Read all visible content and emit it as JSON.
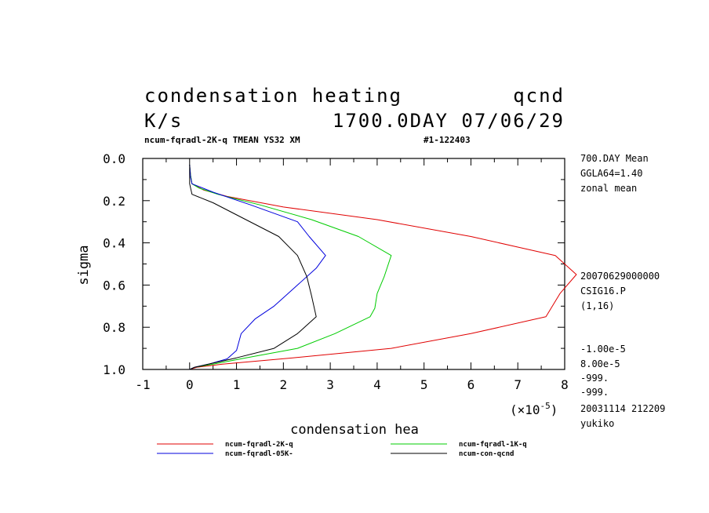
{
  "header": {
    "title": "condensation heating",
    "var_code": "qcnd",
    "units": "K/s",
    "datestamp": "1700.0DAY 07/06/29",
    "subtitle": "ncum-fqradl-2K-q TMEAN YS32 XM",
    "run_id": "#1-122403"
  },
  "side_info": {
    "top": [
      "700.DAY Mean",
      "GGLA64=1.40",
      "zonal mean"
    ],
    "middle": [
      "20070629000000",
      "CSIG16.P",
      "(1,16)"
    ],
    "bottom": [
      "-1.00e-5",
      "8.00e-5",
      "-999.",
      "-999.",
      "20031114 212209",
      "yukiko"
    ]
  },
  "axes": {
    "ylabel": "sigma",
    "xlabel": "condensation hea",
    "x_scale_base": "(×10",
    "x_scale_exp": "-5",
    "x_scale_close": ")"
  },
  "chart_data": {
    "type": "line",
    "title": "condensation heating",
    "xlabel": "condensation hea",
    "ylabel": "sigma",
    "x_scale_factor": 1e-05,
    "xlim": [
      -1,
      8
    ],
    "ylim": [
      0.0,
      1.0
    ],
    "y_inverted": true,
    "x_ticks": [
      -1,
      0,
      1,
      2,
      3,
      4,
      5,
      6,
      7,
      8
    ],
    "x_tick_labels": [
      "-1",
      "0",
      "1",
      "2",
      "3",
      "4",
      "5",
      "6",
      "7",
      "8"
    ],
    "y_ticks": [
      0.0,
      0.2,
      0.4,
      0.6,
      0.8,
      1.0
    ],
    "y_tick_labels": [
      "0.0",
      "0.2",
      "0.4",
      "0.6",
      "0.8",
      "1.0"
    ],
    "grid": false,
    "legend_position": "bottom",
    "series": [
      {
        "name": "ncum-fqradl-2K-q",
        "color": "#e00000",
        "points": [
          [
            0.0,
            0.03
          ],
          [
            0.02,
            0.08
          ],
          [
            0.05,
            0.12
          ],
          [
            0.3,
            0.15
          ],
          [
            0.8,
            0.18
          ],
          [
            2.0,
            0.23
          ],
          [
            4.0,
            0.29
          ],
          [
            6.0,
            0.37
          ],
          [
            7.0,
            0.42
          ],
          [
            7.8,
            0.46
          ],
          [
            8.25,
            0.55
          ],
          [
            7.9,
            0.64
          ],
          [
            7.6,
            0.75
          ],
          [
            6.0,
            0.83
          ],
          [
            4.3,
            0.9
          ],
          [
            2.2,
            0.945
          ],
          [
            0.7,
            0.975
          ],
          [
            0.15,
            0.99
          ],
          [
            0.0,
            1.0
          ]
        ]
      },
      {
        "name": "ncum-fqradl-1K-q",
        "color": "#00cc00",
        "points": [
          [
            0.0,
            0.03
          ],
          [
            0.02,
            0.08
          ],
          [
            0.05,
            0.12
          ],
          [
            0.2,
            0.14
          ],
          [
            0.6,
            0.17
          ],
          [
            1.5,
            0.22
          ],
          [
            2.6,
            0.29
          ],
          [
            3.6,
            0.37
          ],
          [
            4.3,
            0.46
          ],
          [
            4.15,
            0.56
          ],
          [
            4.0,
            0.64
          ],
          [
            3.95,
            0.71
          ],
          [
            3.85,
            0.75
          ],
          [
            3.1,
            0.83
          ],
          [
            2.3,
            0.9
          ],
          [
            1.2,
            0.945
          ],
          [
            0.5,
            0.975
          ],
          [
            0.1,
            0.99
          ],
          [
            0.0,
            1.0
          ]
        ]
      },
      {
        "name": "ncum-fqradl-05K-",
        "color": "#0000dd",
        "points": [
          [
            0.0,
            0.03
          ],
          [
            0.02,
            0.09
          ],
          [
            0.03,
            0.1
          ],
          [
            0.05,
            0.12
          ],
          [
            0.5,
            0.16
          ],
          [
            1.3,
            0.22
          ],
          [
            2.3,
            0.3
          ],
          [
            2.55,
            0.37
          ],
          [
            2.9,
            0.46
          ],
          [
            2.7,
            0.52
          ],
          [
            2.3,
            0.6
          ],
          [
            1.8,
            0.7
          ],
          [
            1.4,
            0.76
          ],
          [
            1.1,
            0.83
          ],
          [
            1.0,
            0.91
          ],
          [
            0.8,
            0.95
          ],
          [
            0.4,
            0.975
          ],
          [
            0.1,
            0.99
          ],
          [
            0.0,
            1.0
          ]
        ]
      },
      {
        "name": "ncum-con-qcnd",
        "color": "#000000",
        "points": [
          [
            0.0,
            0.03
          ],
          [
            0.0,
            0.12
          ],
          [
            0.05,
            0.17
          ],
          [
            0.5,
            0.21
          ],
          [
            1.2,
            0.29
          ],
          [
            1.9,
            0.37
          ],
          [
            2.3,
            0.46
          ],
          [
            2.5,
            0.56
          ],
          [
            2.6,
            0.65
          ],
          [
            2.7,
            0.75
          ],
          [
            2.3,
            0.83
          ],
          [
            1.8,
            0.9
          ],
          [
            1.0,
            0.945
          ],
          [
            0.4,
            0.975
          ],
          [
            0.1,
            0.99
          ],
          [
            0.0,
            1.0
          ]
        ]
      }
    ]
  }
}
